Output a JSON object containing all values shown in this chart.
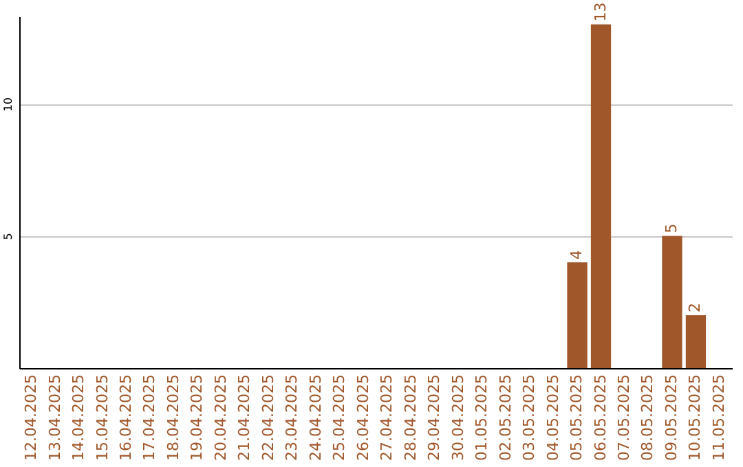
{
  "chart_data": {
    "type": "bar",
    "categories": [
      "12.04.2025",
      "13.04.2025",
      "14.04.2025",
      "15.04.2025",
      "16.04.2025",
      "17.04.2025",
      "18.04.2025",
      "19.04.2025",
      "20.04.2025",
      "21.04.2025",
      "22.04.2025",
      "23.04.2025",
      "24.04.2025",
      "25.04.2025",
      "26.04.2025",
      "27.04.2025",
      "28.04.2025",
      "29.04.2025",
      "30.04.2025",
      "01.05.2025",
      "02.05.2025",
      "03.05.2025",
      "04.05.2025",
      "05.05.2025",
      "06.05.2025",
      "07.05.2025",
      "08.05.2025",
      "09.05.2025",
      "10.05.2025",
      "11.05.2025"
    ],
    "values": [
      0,
      0,
      0,
      0,
      0,
      0,
      0,
      0,
      0,
      0,
      0,
      0,
      0,
      0,
      0,
      0,
      0,
      0,
      0,
      0,
      0,
      0,
      0,
      4,
      13,
      0,
      0,
      5,
      2,
      0
    ],
    "value_labels": [
      null,
      null,
      null,
      null,
      null,
      null,
      null,
      null,
      null,
      null,
      null,
      null,
      null,
      null,
      null,
      null,
      null,
      null,
      null,
      null,
      null,
      null,
      null,
      "4",
      "13",
      null,
      null,
      "5",
      "2",
      null
    ],
    "color": "#a0572a",
    "ylim": [
      0,
      13.3
    ],
    "yticks": [
      5,
      10
    ],
    "grid": "y"
  }
}
